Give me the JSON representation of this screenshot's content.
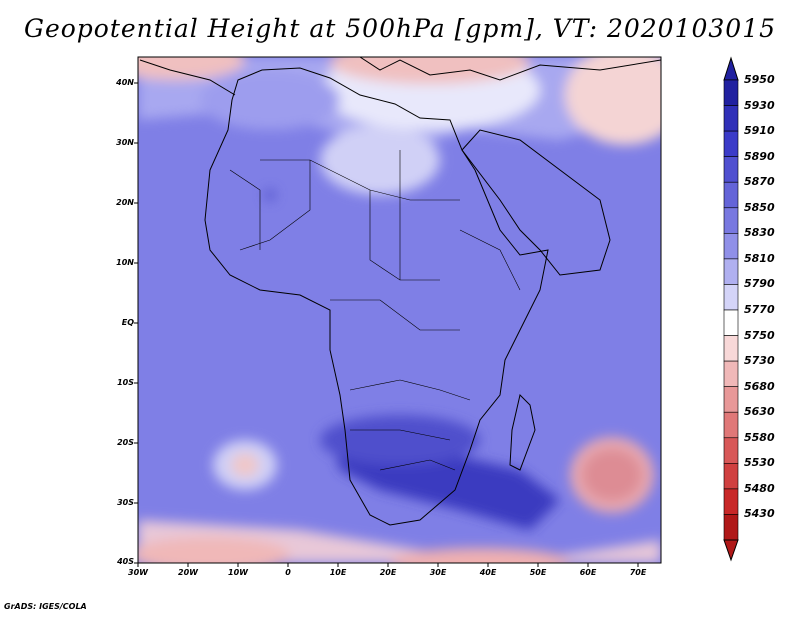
{
  "title": "Geopotential Height at 500hPa [gpm], VT: 2020103015",
  "footer": "GrADS: IGES/COLA",
  "map": {
    "lat_labels": [
      "40N",
      "30N",
      "20N",
      "10N",
      "EQ",
      "10S",
      "20S",
      "30S",
      "40S"
    ],
    "lon_labels": [
      "30W",
      "20W",
      "10W",
      "0",
      "10E",
      "20E",
      "30E",
      "40E",
      "50E",
      "60E",
      "70E"
    ],
    "background_color": "#7f7fe6"
  },
  "colorbar": {
    "labels": [
      "5950",
      "5930",
      "5910",
      "5890",
      "5870",
      "5850",
      "5830",
      "5810",
      "5790",
      "5770",
      "5750",
      "5730",
      "5680",
      "5630",
      "5580",
      "5530",
      "5480",
      "5430"
    ],
    "colors": [
      "#2121a0",
      "#3030b8",
      "#3b3bc8",
      "#5050d0",
      "#6464d8",
      "#7878e0",
      "#9090e8",
      "#b0b0f0",
      "#d4d4f8",
      "#ffffff",
      "#f8d8d8",
      "#f0b8b8",
      "#e89898",
      "#e07878",
      "#d85858",
      "#d04040",
      "#c82828",
      "#b01818"
    ]
  }
}
